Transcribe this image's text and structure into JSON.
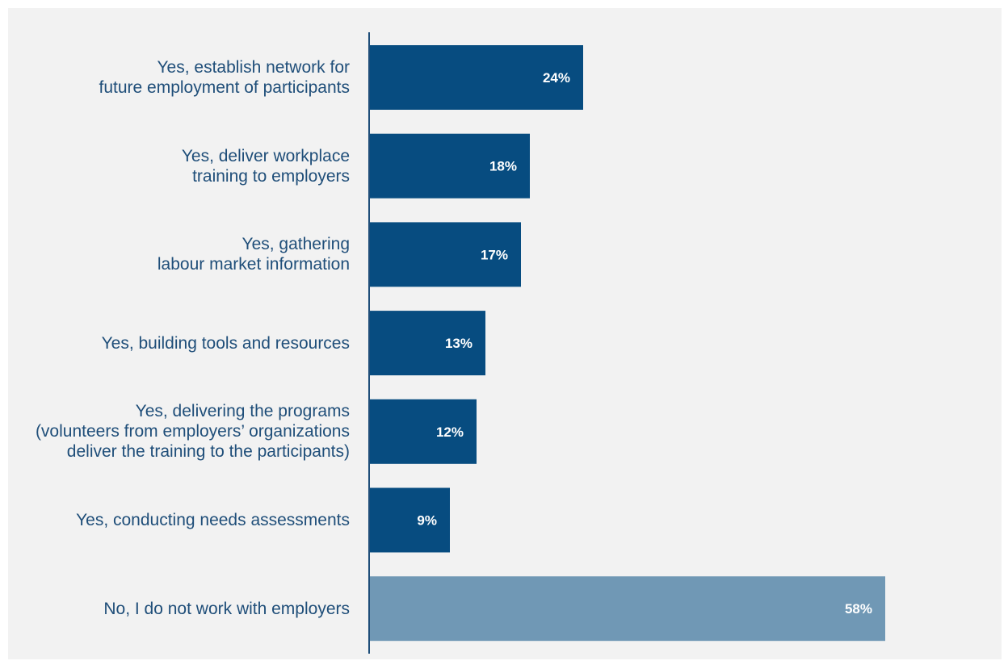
{
  "chart_data": {
    "type": "bar",
    "orientation": "horizontal",
    "title": "",
    "xlabel": "",
    "ylabel": "",
    "xlim": [
      0,
      60
    ],
    "grid": false,
    "legend": "none",
    "categories": [
      "Yes, establish network for\nfuture employment of participants",
      "Yes, deliver workplace\ntraining to employers",
      "Yes, gathering\nlabour market information",
      "Yes, building tools and resources",
      "Yes, delivering the programs\n(volunteers from employers’ organizations\ndeliver the training to the participants)",
      "Yes, conducting needs assessments",
      "No, I do not work with employers"
    ],
    "values": [
      24,
      18,
      17,
      13,
      12,
      9,
      58
    ],
    "value_labels": [
      "24%",
      "18%",
      "17%",
      "13%",
      "12%",
      "9%",
      "58%"
    ],
    "colors": {
      "primary": "#074c80",
      "highlight": "#7098b5",
      "axis": "#1f4e79",
      "label_text": "#1f4e79",
      "panel_bg": "#f2f2f2"
    },
    "highlight_index": 6
  }
}
